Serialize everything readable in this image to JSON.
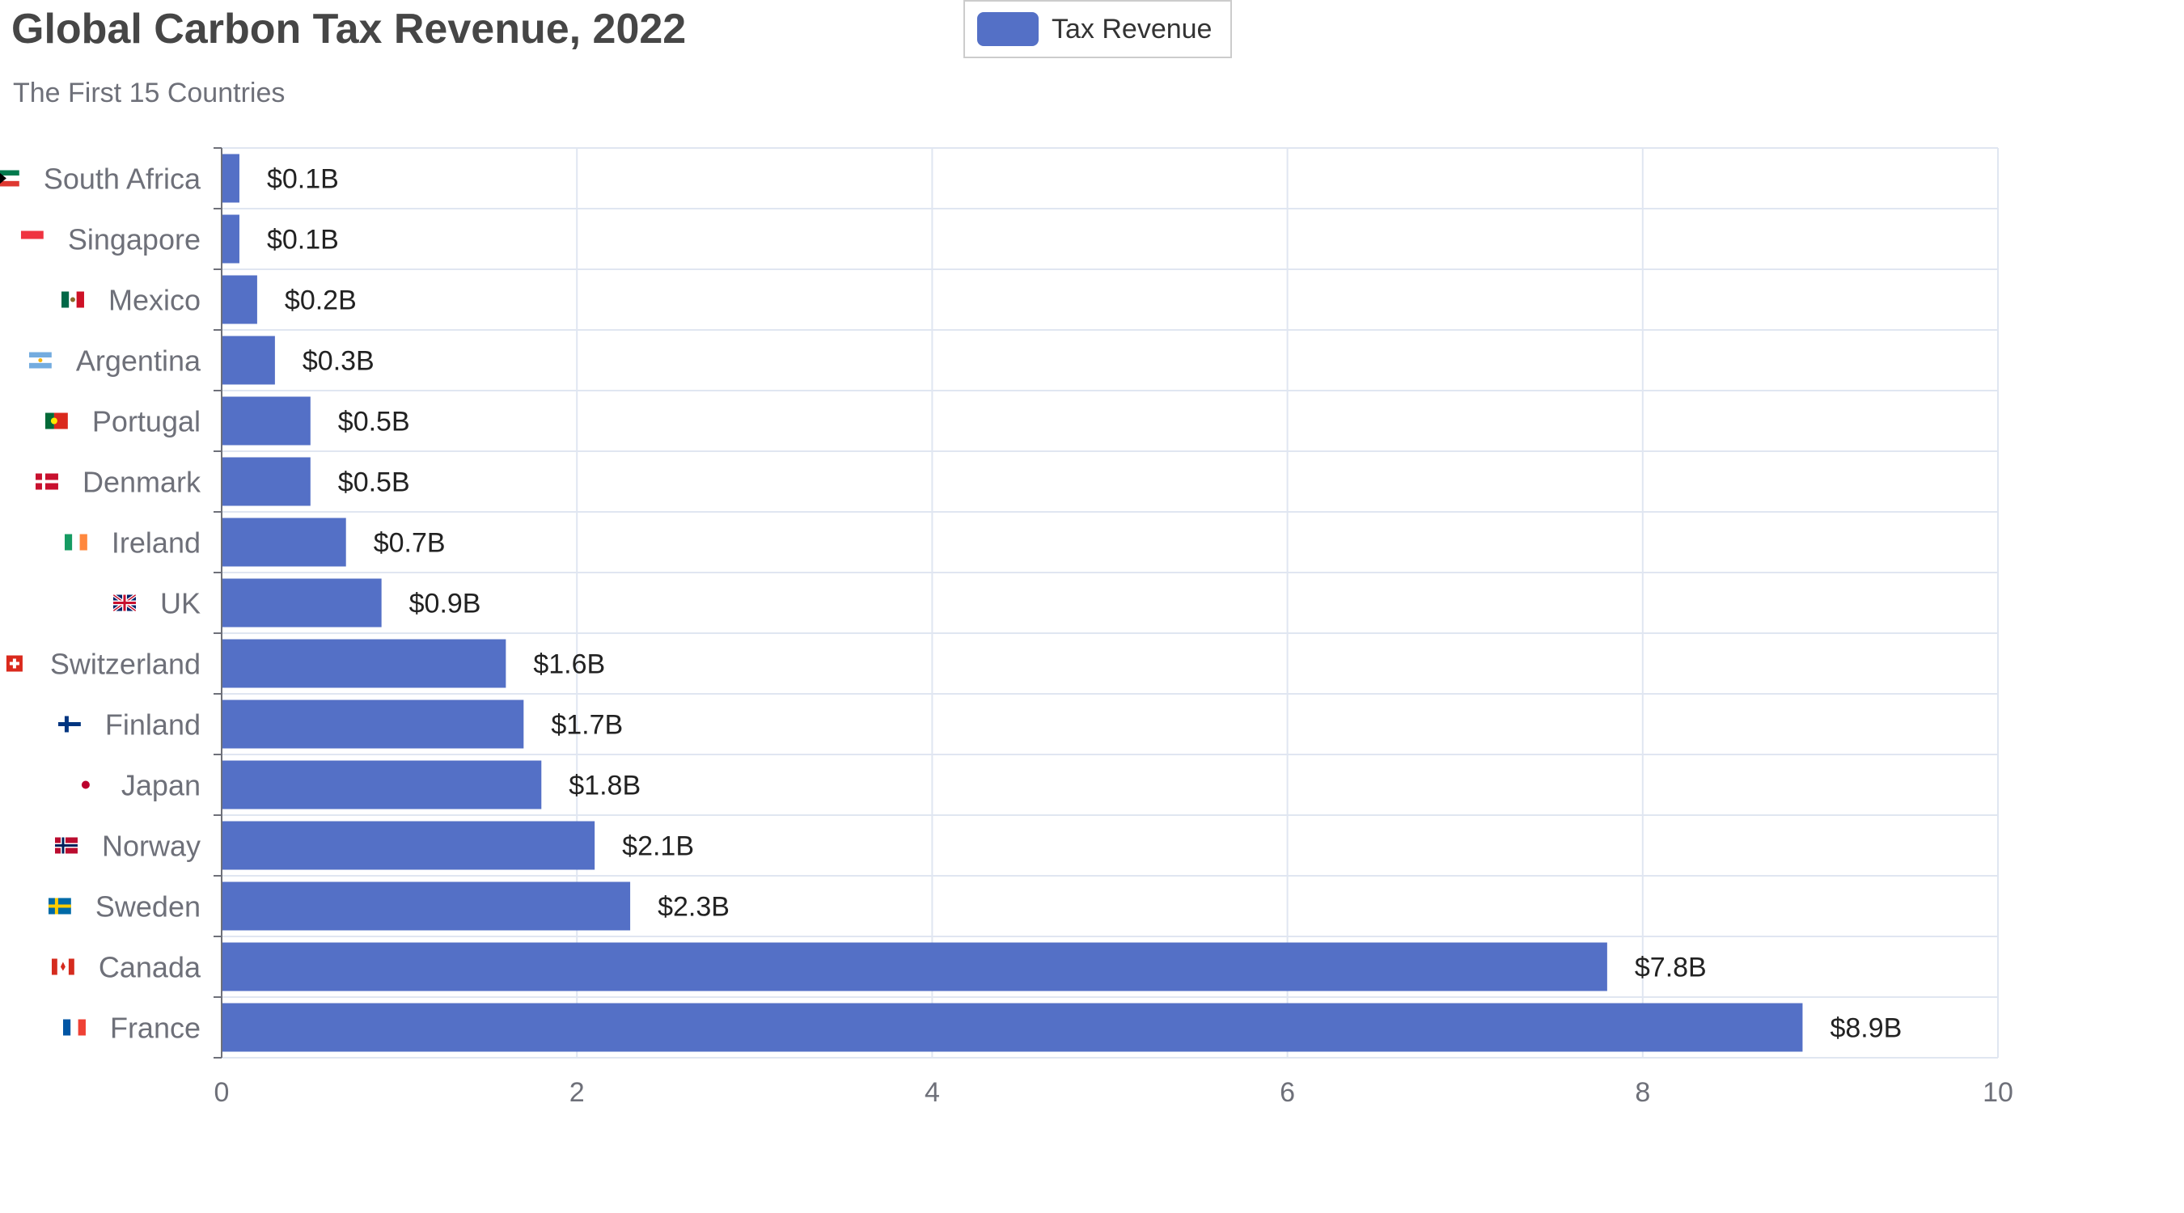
{
  "chart_data": {
    "type": "bar",
    "orientation": "horizontal",
    "title": "Global Carbon Tax Revenue, 2022",
    "subtitle": "The First 15 Countries",
    "legend": {
      "position": "top-center",
      "entries": [
        "Tax Revenue"
      ]
    },
    "colors": {
      "bar": "#5470c6",
      "grid": "#e0e6f1",
      "axis": "#6e7079"
    },
    "categories": [
      "South Africa",
      "Singapore",
      "Mexico",
      "Argentina",
      "Portugal",
      "Denmark",
      "Ireland",
      "UK",
      "Switzerland",
      "Finland",
      "Japan",
      "Norway",
      "Sweden",
      "Canada",
      "France"
    ],
    "flags": [
      "south-africa-flag-icon",
      "singapore-flag-icon",
      "mexico-flag-icon",
      "argentina-flag-icon",
      "portugal-flag-icon",
      "denmark-flag-icon",
      "ireland-flag-icon",
      "uk-flag-icon",
      "switzerland-flag-icon",
      "finland-flag-icon",
      "japan-flag-icon",
      "norway-flag-icon",
      "sweden-flag-icon",
      "canada-flag-icon",
      "france-flag-icon"
    ],
    "series": [
      {
        "name": "Tax Revenue",
        "values": [
          0.1,
          0.1,
          0.2,
          0.3,
          0.5,
          0.5,
          0.7,
          0.9,
          1.6,
          1.7,
          1.8,
          2.1,
          2.3,
          7.8,
          8.9
        ],
        "labels": [
          "$0.1B",
          "$0.1B",
          "$0.2B",
          "$0.3B",
          "$0.5B",
          "$0.5B",
          "$0.7B",
          "$0.9B",
          "$1.6B",
          "$1.7B",
          "$1.8B",
          "$2.1B",
          "$2.3B",
          "$7.8B",
          "$8.9B"
        ]
      }
    ],
    "xlim": [
      0,
      10
    ],
    "xticks": [
      "0",
      "2",
      "4",
      "6",
      "8",
      "10"
    ],
    "grid": true
  }
}
